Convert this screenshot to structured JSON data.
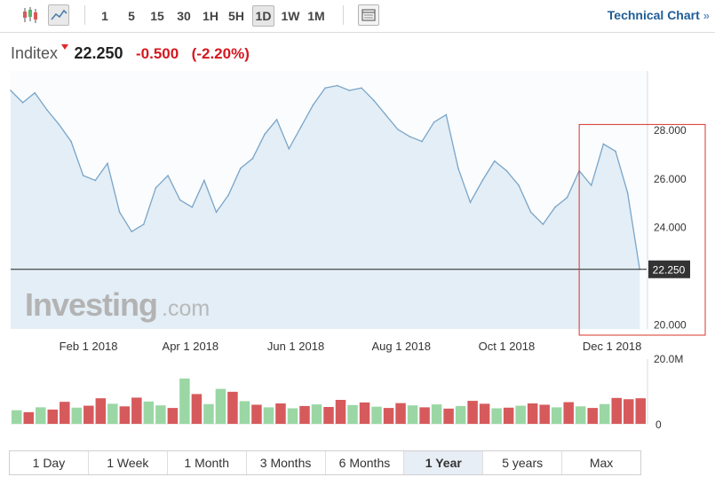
{
  "toolbar": {
    "icons": [
      {
        "name": "candlestick-chart-icon",
        "active": false
      },
      {
        "name": "area-chart-icon",
        "active": true
      }
    ],
    "intervals": [
      {
        "label": "1",
        "active": false
      },
      {
        "label": "5",
        "active": false
      },
      {
        "label": "15",
        "active": false
      },
      {
        "label": "30",
        "active": false
      },
      {
        "label": "1H",
        "active": false
      },
      {
        "label": "5H",
        "active": false
      },
      {
        "label": "1D",
        "active": true
      },
      {
        "label": "1W",
        "active": false
      },
      {
        "label": "1M",
        "active": false
      }
    ],
    "settings_icon": "window-layout-icon",
    "technical_chart_label": "Technical Chart",
    "technical_chart_chevron": "»"
  },
  "quote": {
    "name": "Inditex",
    "price": "22.250",
    "change": "-0.500",
    "change_pct": "(-2.20%)",
    "arrow_color": "#e3262a",
    "change_color": "#d5181f"
  },
  "watermark": {
    "brand": "Investing",
    "suffix": ".com"
  },
  "colors": {
    "line": "#7aa5c9",
    "area": "#e3eef6",
    "volume_up": "#9ad7a4",
    "volume_down": "#d65a5c",
    "last_price_label_bg": "#333333",
    "highlight_box": "#d9342b"
  },
  "chart_data": {
    "type": "area",
    "x": [
      "2017-12-18",
      "2017-12-25",
      "2018-01-01",
      "2018-01-08",
      "2018-01-15",
      "2018-01-22",
      "2018-01-29",
      "2018-02-05",
      "2018-02-12",
      "2018-02-19",
      "2018-02-26",
      "2018-03-05",
      "2018-03-12",
      "2018-03-19",
      "2018-03-26",
      "2018-04-02",
      "2018-04-09",
      "2018-04-16",
      "2018-04-23",
      "2018-04-30",
      "2018-05-07",
      "2018-05-14",
      "2018-05-21",
      "2018-05-28",
      "2018-06-04",
      "2018-06-11",
      "2018-06-18",
      "2018-06-25",
      "2018-07-02",
      "2018-07-09",
      "2018-07-16",
      "2018-07-23",
      "2018-07-30",
      "2018-08-06",
      "2018-08-13",
      "2018-08-20",
      "2018-08-27",
      "2018-09-03",
      "2018-09-10",
      "2018-09-17",
      "2018-09-24",
      "2018-10-01",
      "2018-10-08",
      "2018-10-15",
      "2018-10-22",
      "2018-10-29",
      "2018-11-05",
      "2018-11-12",
      "2018-11-19",
      "2018-11-26",
      "2018-12-03",
      "2018-12-10",
      "2018-12-17"
    ],
    "series": [
      {
        "values": [
          29.6,
          29.1,
          29.5,
          28.8,
          28.2,
          27.5,
          26.1,
          25.9,
          26.6,
          24.6,
          23.8,
          24.1,
          25.6,
          26.1,
          25.1,
          24.8,
          25.9,
          24.6,
          25.3,
          26.4,
          26.8,
          27.8,
          28.4,
          27.2,
          28.1,
          29.0,
          29.7,
          29.8,
          29.6,
          29.7,
          29.2,
          28.6,
          28.0,
          27.7,
          27.5,
          28.3,
          28.6,
          26.4,
          25.0,
          25.9,
          26.7,
          26.3,
          25.7,
          24.6,
          24.1,
          24.8,
          25.2,
          26.3,
          25.7,
          27.4,
          27.1,
          25.4,
          22.25
        ]
      }
    ],
    "ylim": [
      19.8,
      30.4
    ],
    "y_ticks": [
      "28.000",
      "26.000",
      "24.000",
      "20.000"
    ],
    "y_tick_values": [
      28,
      26,
      24,
      20
    ],
    "x_ticks": [
      {
        "date": "2018-02-01",
        "label": "Feb 1 2018"
      },
      {
        "date": "2018-04-01",
        "label": "Apr 1 2018"
      },
      {
        "date": "2018-06-01",
        "label": "Jun 1 2018"
      },
      {
        "date": "2018-08-01",
        "label": "Aug 1 2018"
      },
      {
        "date": "2018-10-01",
        "label": "Oct 1 2018"
      },
      {
        "date": "2018-12-01",
        "label": "Dec 1 2018"
      }
    ],
    "last_price": 22.25,
    "last_price_label": "22.250",
    "highlight": {
      "from": "2018-11-12",
      "to": "2018-12-21",
      "y_from": 19.8,
      "y_to": 28.2
    },
    "grid": false,
    "volume": {
      "max_label": "20.0M",
      "zero_label": "0",
      "max": 20.0,
      "unit": "M",
      "values": [
        4.2,
        3.6,
        5.1,
        4.4,
        6.8,
        5.0,
        5.6,
        7.9,
        6.2,
        5.4,
        8.1,
        6.9,
        5.7,
        4.9,
        14.0,
        9.2,
        6.1,
        10.8,
        9.9,
        7.0,
        5.9,
        5.1,
        6.3,
        4.8,
        5.5,
        6.0,
        5.2,
        7.4,
        5.8,
        6.6,
        5.3,
        4.9,
        6.4,
        5.7,
        5.1,
        6.0,
        4.7,
        5.5,
        7.1,
        6.2,
        4.8,
        5.0,
        5.6,
        6.3,
        5.9,
        5.1,
        6.7,
        5.4,
        4.9,
        6.1,
        8.0,
        7.6,
        7.9
      ],
      "up": [
        1,
        0,
        1,
        0,
        0,
        1,
        0,
        0,
        1,
        0,
        0,
        1,
        1,
        0,
        1,
        0,
        1,
        1,
        0,
        1,
        0,
        1,
        0,
        1,
        0,
        1,
        0,
        0,
        1,
        0,
        1,
        0,
        0,
        1,
        0,
        1,
        0,
        1,
        0,
        0,
        1,
        0,
        1,
        0,
        0,
        1,
        0,
        1,
        0,
        1,
        0,
        0,
        0
      ]
    }
  },
  "periods": [
    {
      "label": "1 Day",
      "active": false
    },
    {
      "label": "1 Week",
      "active": false
    },
    {
      "label": "1 Month",
      "active": false
    },
    {
      "label": "3 Months",
      "active": false
    },
    {
      "label": "6 Months",
      "active": false
    },
    {
      "label": "1 Year",
      "active": true
    },
    {
      "label": "5 years",
      "active": false
    },
    {
      "label": "Max",
      "active": false
    }
  ]
}
